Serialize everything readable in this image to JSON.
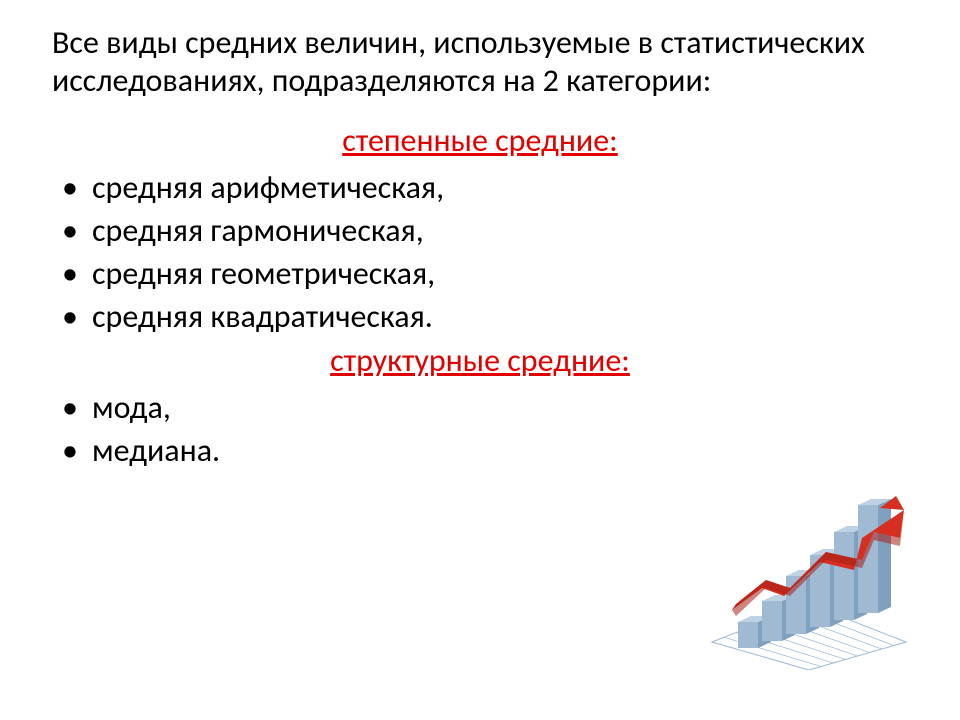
{
  "intro_text": "Все виды средних величин, используемые в статистических исследованиях, подразделяются на 2 категории:",
  "section1": {
    "heading": "степенные средние:",
    "color": "#e00000",
    "items": [
      "средняя арифметическая,",
      "средняя гармоническая,",
      "средняя геометрическая,",
      "средняя квадратическая."
    ]
  },
  "section2": {
    "heading": "структурные средние:",
    "color": "#e00000",
    "items": [
      "мода,",
      "медиана."
    ]
  },
  "illustration": {
    "type": "infographic",
    "description": "3d-bar-chart-with-rising-arrow",
    "grid_color": "#9db9d6",
    "grid_plane_fill": "#ffffff",
    "bars": [
      {
        "h": 26,
        "top_fill": "#bfd2e4",
        "front_fill": "#9fbad2",
        "side_fill": "#7fa0be"
      },
      {
        "h": 40,
        "top_fill": "#bfd2e4",
        "front_fill": "#9fbad2",
        "side_fill": "#7fa0be"
      },
      {
        "h": 58,
        "top_fill": "#bfd2e4",
        "front_fill": "#9fbad2",
        "side_fill": "#7fa0be"
      },
      {
        "h": 72,
        "top_fill": "#bfd2e4",
        "front_fill": "#9fbad2",
        "side_fill": "#7fa0be"
      },
      {
        "h": 88,
        "top_fill": "#bfd2e4",
        "front_fill": "#9fbad2",
        "side_fill": "#7fa0be"
      },
      {
        "h": 108,
        "top_fill": "#bfd2e4",
        "front_fill": "#9fbad2",
        "side_fill": "#7fa0be"
      }
    ],
    "arrow_color": "#d62f22",
    "arrow_shadow": "#a51f16"
  }
}
